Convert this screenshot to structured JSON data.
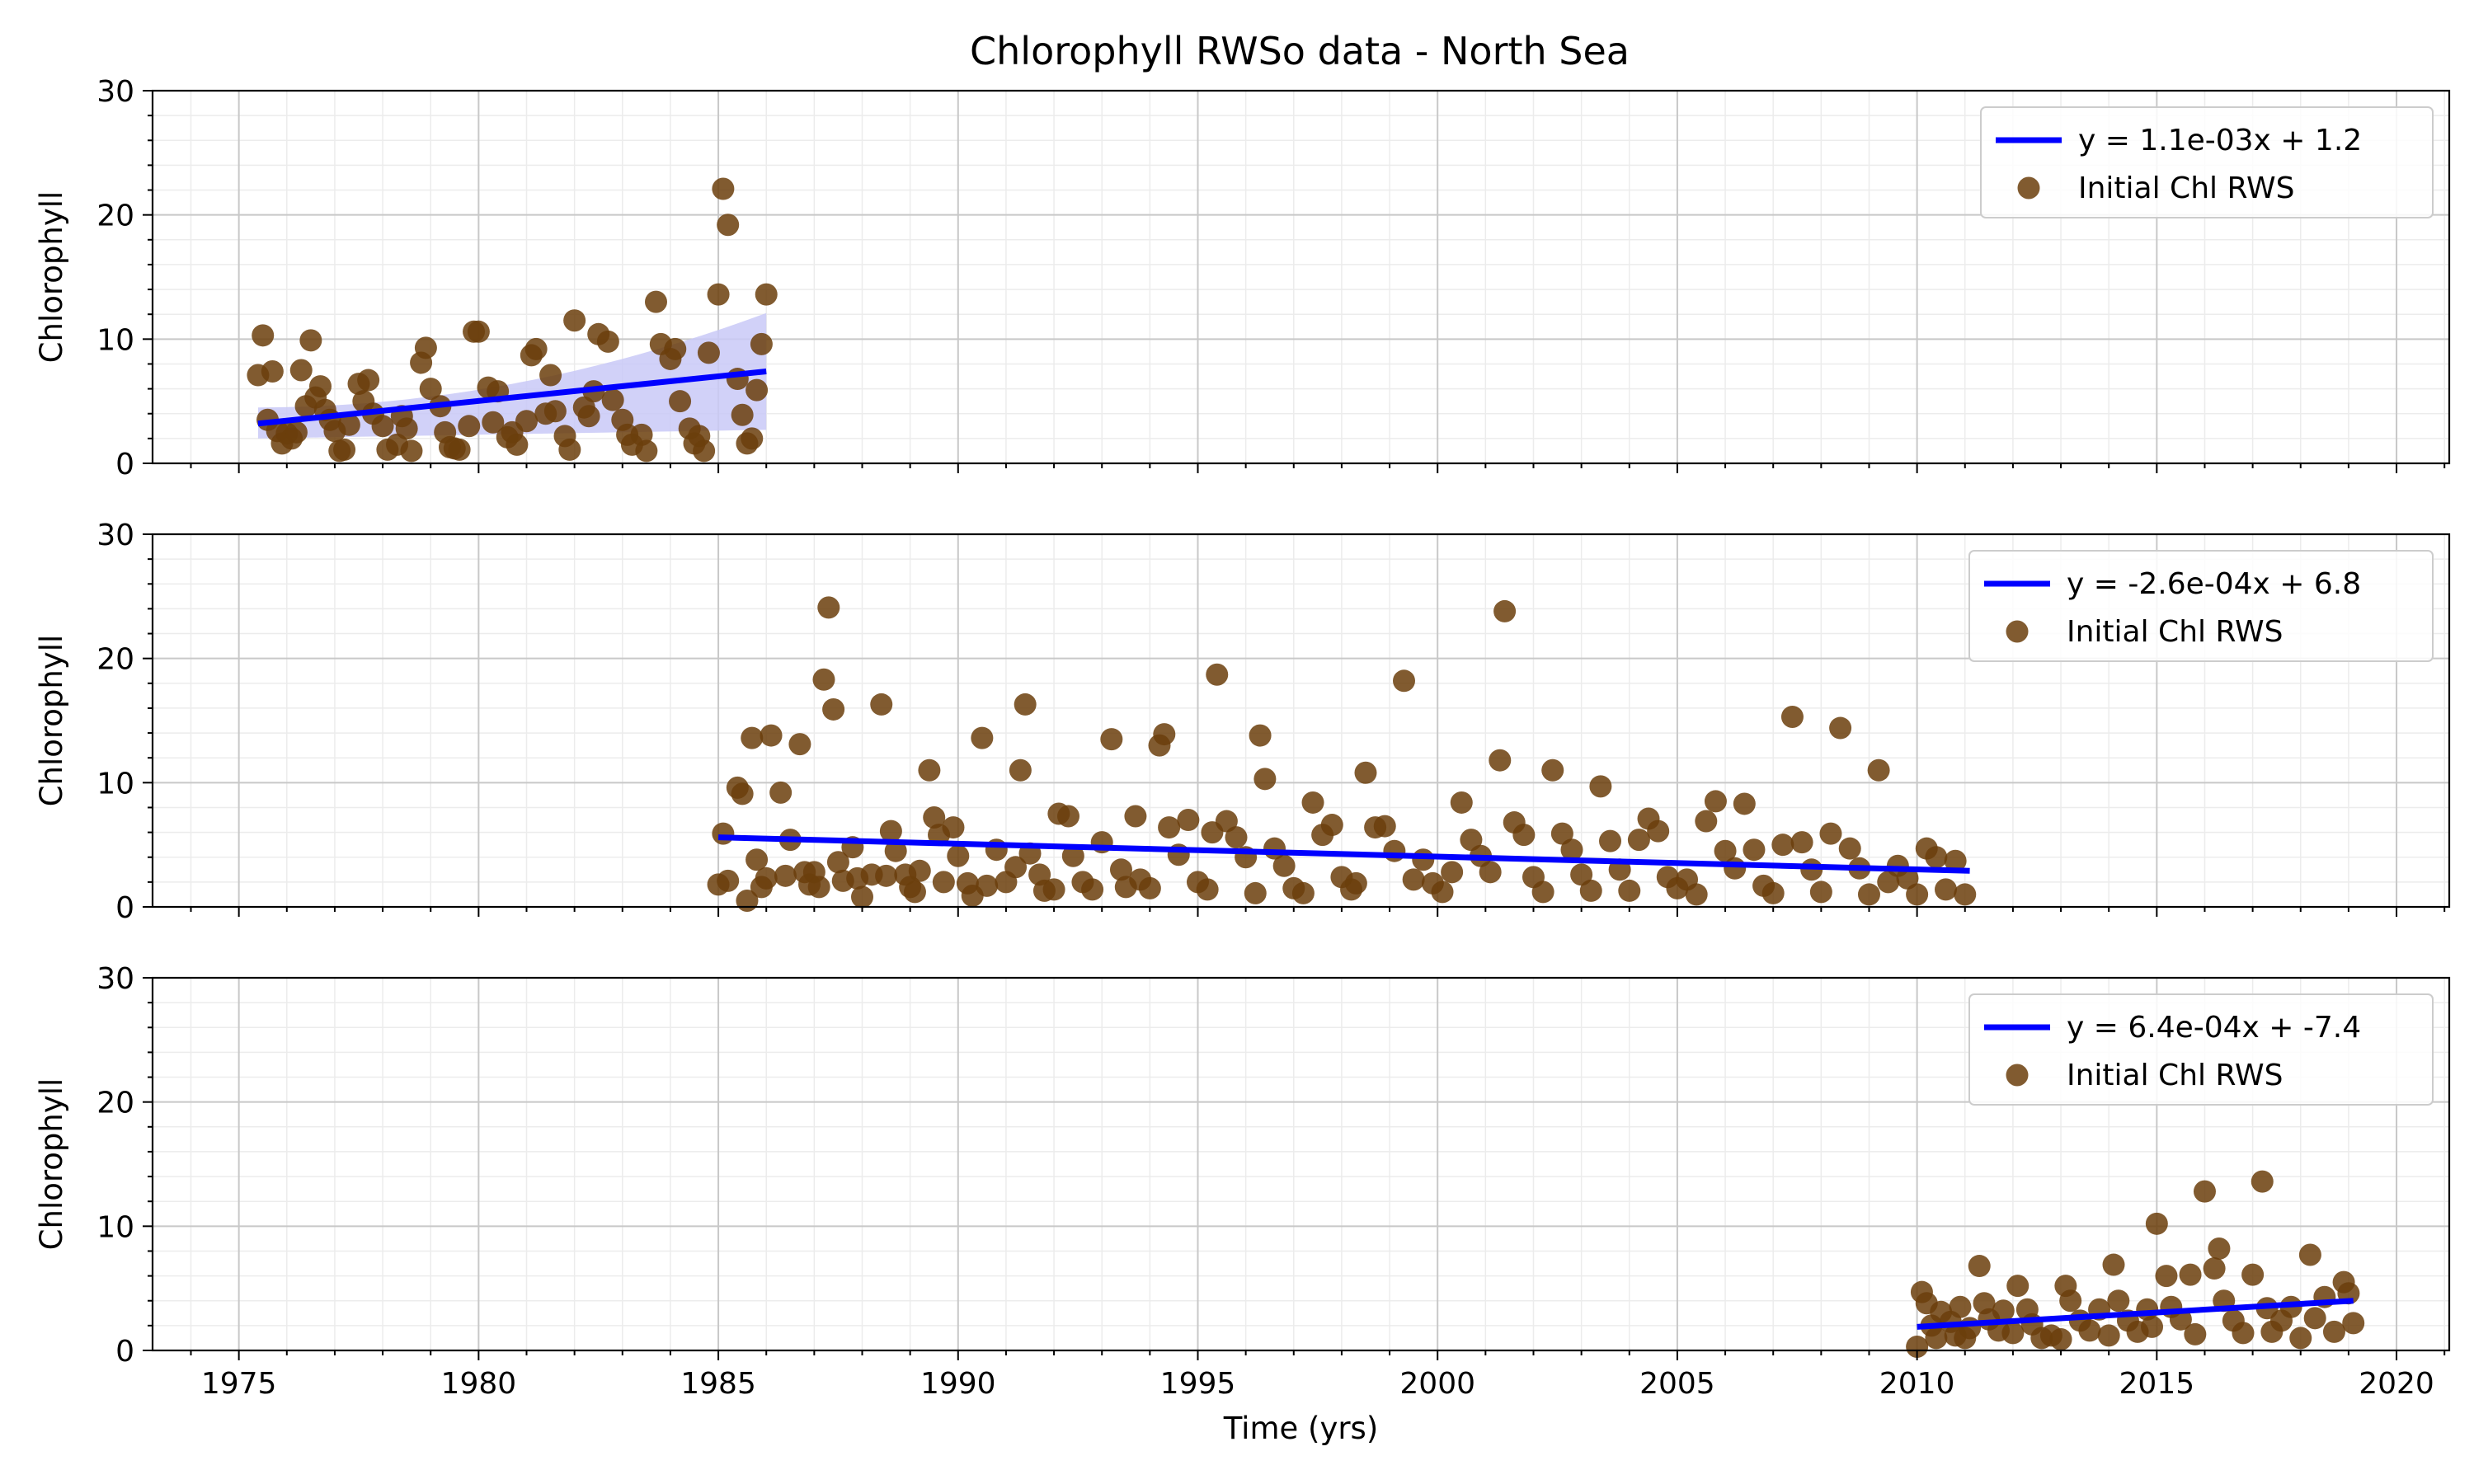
{
  "title": "Chlorophyll RWSo data - North Sea",
  "colors": {
    "scatter": "#6b3e0c",
    "line": "#0000ff",
    "band": "#c9c9f7",
    "grid_major": "#c8c8c8",
    "grid_minor": "#ececec"
  },
  "chart_data": [
    {
      "type": "scatter",
      "ylabel": "Chlorophyll",
      "xlabel": "",
      "xlim": [
        1973.2,
        2021.1
      ],
      "ylim": [
        0,
        30
      ],
      "xticks": [
        "1975",
        "1980",
        "1985",
        "1990",
        "1995",
        "2000",
        "2005",
        "2010",
        "2015",
        "2020"
      ],
      "yticks": [
        "0",
        "10",
        "20",
        "30"
      ],
      "grid": true,
      "legend_position": "top-right",
      "series": [
        {
          "name": "y = 1.1e-03x + 1.2",
          "type": "line",
          "x": [
            1975.4,
            1986.0
          ],
          "y": [
            3.2,
            7.4
          ],
          "ci_low": [
            2.0,
            2.7
          ],
          "ci_high": [
            4.5,
            12.1
          ]
        },
        {
          "name": "Initial Chl RWS",
          "type": "scatter",
          "x": [
            1975.4,
            1975.5,
            1975.6,
            1975.7,
            1975.8,
            1975.9,
            1976.0,
            1976.1,
            1976.2,
            1976.3,
            1976.4,
            1976.5,
            1976.6,
            1976.7,
            1976.8,
            1976.9,
            1977.0,
            1977.1,
            1977.2,
            1977.3,
            1977.5,
            1977.6,
            1977.7,
            1977.8,
            1978.0,
            1978.1,
            1978.3,
            1978.4,
            1978.5,
            1978.6,
            1978.8,
            1978.9,
            1979.0,
            1979.2,
            1979.3,
            1979.4,
            1979.5,
            1979.6,
            1979.8,
            1979.9,
            1980.0,
            1980.2,
            1980.3,
            1980.4,
            1980.6,
            1980.7,
            1980.8,
            1981.0,
            1981.1,
            1981.2,
            1981.4,
            1981.5,
            1981.6,
            1981.8,
            1981.9,
            1982.0,
            1982.2,
            1982.3,
            1982.4,
            1982.5,
            1982.7,
            1982.8,
            1983.0,
            1983.1,
            1983.2,
            1983.4,
            1983.5,
            1983.7,
            1983.8,
            1984.0,
            1984.1,
            1984.2,
            1984.4,
            1984.5,
            1984.6,
            1984.7,
            1984.8,
            1985.0,
            1985.1,
            1985.2,
            1985.4,
            1985.5,
            1985.6,
            1985.7,
            1985.8,
            1985.9,
            1986.0
          ],
          "y": [
            7.1,
            10.3,
            3.5,
            7.4,
            2.6,
            1.6,
            2.4,
            2.0,
            2.5,
            7.5,
            4.6,
            9.9,
            5.3,
            6.2,
            4.3,
            3.5,
            2.6,
            1.0,
            1.1,
            3.1,
            6.4,
            5.0,
            6.7,
            4.0,
            3.0,
            1.1,
            1.5,
            3.8,
            2.8,
            1.0,
            8.1,
            9.3,
            6.0,
            4.6,
            2.5,
            1.3,
            1.2,
            1.1,
            3.0,
            10.6,
            10.6,
            6.1,
            3.3,
            5.8,
            2.1,
            2.5,
            1.5,
            3.4,
            8.7,
            9.2,
            4.0,
            7.1,
            4.2,
            2.2,
            1.1,
            11.5,
            4.5,
            3.8,
            5.8,
            10.4,
            9.8,
            5.1,
            3.5,
            2.3,
            1.5,
            2.3,
            1.0,
            13.0,
            9.6,
            8.4,
            9.2,
            5.0,
            2.8,
            1.6,
            2.2,
            1.0,
            8.9,
            13.6,
            22.1,
            19.2,
            6.8,
            3.9,
            1.6,
            2.0,
            5.9,
            9.6,
            13.6
          ]
        }
      ]
    },
    {
      "type": "scatter",
      "ylabel": "Chlorophyll",
      "xlabel": "",
      "xlim": [
        1973.2,
        2021.1
      ],
      "ylim": [
        0,
        30
      ],
      "xticks": [
        "1975",
        "1980",
        "1985",
        "1990",
        "1995",
        "2000",
        "2005",
        "2010",
        "2015",
        "2020"
      ],
      "yticks": [
        "0",
        "10",
        "20",
        "30"
      ],
      "grid": true,
      "legend_position": "top-right",
      "series": [
        {
          "name": "y = -2.6e-04x + 6.8",
          "type": "line",
          "x": [
            1985.0,
            2011.1
          ],
          "y": [
            5.6,
            2.9
          ]
        },
        {
          "name": "Initial Chl RWS",
          "type": "scatter",
          "x": [
            1985.0,
            1985.1,
            1985.2,
            1985.4,
            1985.5,
            1985.6,
            1985.7,
            1985.8,
            1985.9,
            1986.0,
            1986.1,
            1986.3,
            1986.4,
            1986.5,
            1986.7,
            1986.8,
            1986.9,
            1987.0,
            1987.1,
            1987.2,
            1987.3,
            1987.4,
            1987.5,
            1987.6,
            1987.8,
            1987.9,
            1988.0,
            1988.2,
            1988.4,
            1988.5,
            1988.6,
            1988.7,
            1988.9,
            1989.0,
            1989.1,
            1989.2,
            1989.4,
            1989.5,
            1989.6,
            1989.7,
            1989.9,
            1990.0,
            1990.2,
            1990.3,
            1990.5,
            1990.6,
            1990.8,
            1991.0,
            1991.2,
            1991.3,
            1991.4,
            1991.5,
            1991.7,
            1991.8,
            1992.0,
            1992.1,
            1992.3,
            1992.4,
            1992.6,
            1992.8,
            1993.0,
            1993.2,
            1993.4,
            1993.5,
            1993.7,
            1993.8,
            1994.0,
            1994.2,
            1994.3,
            1994.4,
            1994.6,
            1994.8,
            1995.0,
            1995.2,
            1995.3,
            1995.4,
            1995.6,
            1995.8,
            1996.0,
            1996.2,
            1996.3,
            1996.4,
            1996.6,
            1996.8,
            1997.0,
            1997.2,
            1997.4,
            1997.6,
            1997.8,
            1998.0,
            1998.2,
            1998.3,
            1998.5,
            1998.7,
            1998.9,
            1999.1,
            1999.3,
            1999.5,
            1999.7,
            1999.9,
            2000.1,
            2000.3,
            2000.5,
            2000.7,
            2000.9,
            2001.1,
            2001.3,
            2001.4,
            2001.6,
            2001.8,
            2002.0,
            2002.2,
            2002.4,
            2002.6,
            2002.8,
            2003.0,
            2003.2,
            2003.4,
            2003.6,
            2003.8,
            2004.0,
            2004.2,
            2004.4,
            2004.6,
            2004.8,
            2005.0,
            2005.2,
            2005.4,
            2005.6,
            2005.8,
            2006.0,
            2006.2,
            2006.4,
            2006.6,
            2006.8,
            2007.0,
            2007.2,
            2007.4,
            2007.6,
            2007.8,
            2008.0,
            2008.2,
            2008.4,
            2008.6,
            2008.8,
            2009.0,
            2009.2,
            2009.4,
            2009.6,
            2009.8,
            2010.0,
            2010.2,
            2010.4,
            2010.6,
            2010.8,
            2011.0
          ],
          "y": [
            1.8,
            5.9,
            2.1,
            9.6,
            9.1,
            0.5,
            13.6,
            3.8,
            1.6,
            2.3,
            13.8,
            9.2,
            2.5,
            5.4,
            13.1,
            2.8,
            1.8,
            2.8,
            1.6,
            18.3,
            24.1,
            15.9,
            3.6,
            2.1,
            4.8,
            2.3,
            0.8,
            2.6,
            16.3,
            2.5,
            6.1,
            4.5,
            2.6,
            1.6,
            1.2,
            2.9,
            11.0,
            7.2,
            5.8,
            2.0,
            6.4,
            4.1,
            1.9,
            0.9,
            13.6,
            1.7,
            4.6,
            2.0,
            3.2,
            11.0,
            16.3,
            4.3,
            2.6,
            1.3,
            1.4,
            7.5,
            7.3,
            4.1,
            2.0,
            1.4,
            5.2,
            13.5,
            3.0,
            1.6,
            7.3,
            2.2,
            1.5,
            13.0,
            13.9,
            6.4,
            4.2,
            7.0,
            2.0,
            1.4,
            6.0,
            18.7,
            6.9,
            5.6,
            4.0,
            1.1,
            13.8,
            10.3,
            4.7,
            3.3,
            1.5,
            1.1,
            8.4,
            5.8,
            6.6,
            2.4,
            1.4,
            1.9,
            10.8,
            6.4,
            6.5,
            4.5,
            18.2,
            2.2,
            3.8,
            1.9,
            1.2,
            2.8,
            8.4,
            5.4,
            4.1,
            2.8,
            11.8,
            23.8,
            6.8,
            5.8,
            2.4,
            1.2,
            11.0,
            5.9,
            4.6,
            2.6,
            1.3,
            9.7,
            5.3,
            3.0,
            1.3,
            5.4,
            7.1,
            6.1,
            2.4,
            1.5,
            2.2,
            1.0,
            6.9,
            8.5,
            4.5,
            3.1,
            8.3,
            4.6,
            1.7,
            1.1,
            5.0,
            15.3,
            5.2,
            3.0,
            1.2,
            5.9,
            14.4,
            4.7,
            3.1,
            1.0,
            11.0,
            2.0,
            3.3,
            2.3,
            1.0,
            4.7,
            4.0,
            1.4,
            3.7,
            1.0
          ]
        }
      ]
    },
    {
      "type": "scatter",
      "ylabel": "Chlorophyll",
      "xlabel": "Time (yrs)",
      "xlim": [
        1973.2,
        2021.1
      ],
      "ylim": [
        0,
        30
      ],
      "xticks": [
        "1975",
        "1980",
        "1985",
        "1990",
        "1995",
        "2000",
        "2005",
        "2010",
        "2015",
        "2020"
      ],
      "yticks": [
        "0",
        "10",
        "20",
        "30"
      ],
      "grid": true,
      "legend_position": "top-right",
      "series": [
        {
          "name": "y = 6.4e-04x + -7.4",
          "type": "line",
          "x": [
            2010.0,
            2019.1
          ],
          "y": [
            1.9,
            4.0
          ]
        },
        {
          "name": "Initial Chl RWS",
          "type": "scatter",
          "x": [
            2010.0,
            2010.1,
            2010.2,
            2010.3,
            2010.4,
            2010.5,
            2010.7,
            2010.8,
            2010.9,
            2011.0,
            2011.1,
            2011.3,
            2011.4,
            2011.5,
            2011.7,
            2011.8,
            2012.0,
            2012.1,
            2012.3,
            2012.4,
            2012.6,
            2012.8,
            2013.0,
            2013.1,
            2013.2,
            2013.4,
            2013.6,
            2013.8,
            2014.0,
            2014.1,
            2014.2,
            2014.4,
            2014.6,
            2014.8,
            2014.9,
            2015.0,
            2015.2,
            2015.3,
            2015.5,
            2015.7,
            2015.8,
            2016.0,
            2016.2,
            2016.3,
            2016.4,
            2016.6,
            2016.8,
            2017.0,
            2017.2,
            2017.3,
            2017.4,
            2017.6,
            2017.8,
            2018.0,
            2018.2,
            2018.3,
            2018.5,
            2018.7,
            2018.9,
            2019.0,
            2019.1
          ],
          "y": [
            0.3,
            4.7,
            3.8,
            2.0,
            1.0,
            3.1,
            2.3,
            1.2,
            3.5,
            1.0,
            1.8,
            6.8,
            3.8,
            2.5,
            1.6,
            3.2,
            1.4,
            5.2,
            3.3,
            2.1,
            1.0,
            1.2,
            0.9,
            5.2,
            4.0,
            2.4,
            1.6,
            3.3,
            1.2,
            6.9,
            4.0,
            2.4,
            1.5,
            3.3,
            1.9,
            10.2,
            6.0,
            3.5,
            2.5,
            6.1,
            1.3,
            12.8,
            6.6,
            8.2,
            4.0,
            2.4,
            1.4,
            6.1,
            13.6,
            3.4,
            1.5,
            2.4,
            3.5,
            1.0,
            7.7,
            2.6,
            4.3,
            1.5,
            5.5,
            4.6,
            2.2
          ]
        }
      ]
    }
  ]
}
